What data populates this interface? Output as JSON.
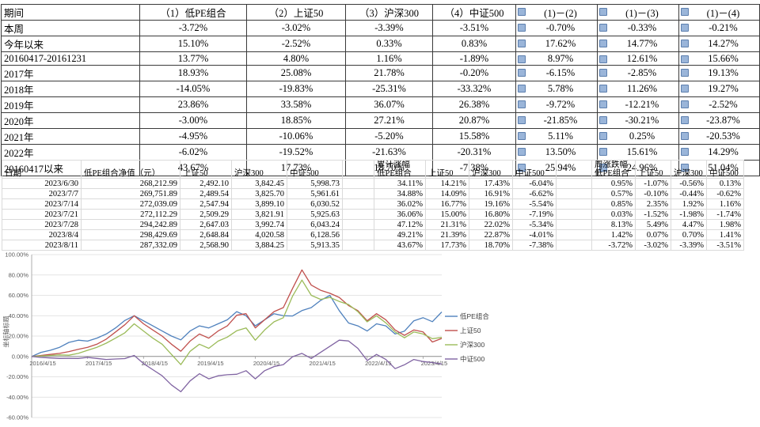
{
  "summary_table": {
    "headers": [
      "期间",
      "（1）低PE组合",
      "（2）上证50",
      "（3）沪深300",
      "（4）中证500",
      "(1)－(2)",
      "(1)－(3)",
      "(1)－(4)"
    ],
    "rows": [
      [
        "本周",
        "-3.72%",
        "-3.02%",
        "-3.39%",
        "-3.51%",
        "-0.70%",
        "-0.33%",
        "-0.21%"
      ],
      [
        "今年以来",
        "15.10%",
        "-2.52%",
        "0.33%",
        "0.83%",
        "17.62%",
        "14.77%",
        "14.27%"
      ],
      [
        "20160417-20161231",
        "13.77%",
        "4.80%",
        "1.16%",
        "-1.89%",
        "8.97%",
        "12.61%",
        "15.66%"
      ],
      [
        "2017年",
        "18.93%",
        "25.08%",
        "21.78%",
        "-0.20%",
        "-6.15%",
        "-2.85%",
        "19.13%"
      ],
      [
        "2018年",
        "-14.05%",
        "-19.83%",
        "-25.31%",
        "-33.32%",
        "5.78%",
        "11.26%",
        "19.27%"
      ],
      [
        "2019年",
        "23.86%",
        "33.58%",
        "36.07%",
        "26.38%",
        "-9.72%",
        "-12.21%",
        "-2.52%"
      ],
      [
        "2020年",
        "-3.00%",
        "18.85%",
        "27.21%",
        "20.87%",
        "-21.85%",
        "-30.21%",
        "-23.87%"
      ],
      [
        "2021年",
        "-4.95%",
        "-10.06%",
        "-5.20%",
        "15.58%",
        "5.11%",
        "0.25%",
        "-20.53%"
      ],
      [
        "2022年",
        "-6.02%",
        "-19.52%",
        "-21.63%",
        "-20.31%",
        "13.50%",
        "15.61%",
        "14.29%"
      ],
      [
        "20160417以来",
        "43.67%",
        "17.73%",
        "18.70%",
        "-7.38%",
        "25.94%",
        "24.96%",
        "51.04%"
      ]
    ]
  },
  "detail_table": {
    "headers": [
      {
        "l1": "日期"
      },
      {
        "l1": "低PE组合净值（元）"
      },
      {
        "l1": "上证50"
      },
      {
        "l1": "沪深300"
      },
      {
        "l1": "中证500"
      },
      {
        "l1": ""
      },
      {
        "l1": "累计涨幅",
        "l2": "低PE组合"
      },
      {
        "l1": "上证50"
      },
      {
        "l1": "沪深300"
      },
      {
        "l1": "中证500"
      },
      {
        "l1": ""
      },
      {
        "l1": "周涨跌幅",
        "l2": "低PE组合"
      },
      {
        "l1": "上证50"
      },
      {
        "l1": "沪深300"
      },
      {
        "l1": "中证500"
      }
    ],
    "rows": [
      [
        "2023/6/30",
        "268,212.99",
        "2,492.10",
        "3,842.45",
        "5,998.73",
        "",
        "34.11%",
        "14.21%",
        "17.43%",
        "-6.04%",
        "",
        "0.95%",
        "-1.07%",
        "-0.56%",
        "0.13%"
      ],
      [
        "2023/7/7",
        "269,751.89",
        "2,489.54",
        "3,825.70",
        "5,961.61",
        "",
        "34.88%",
        "14.09%",
        "16.91%",
        "-6.62%",
        "",
        "0.57%",
        "-0.10%",
        "-0.44%",
        "-0.62%"
      ],
      [
        "2023/7/14",
        "272,039.09",
        "2,547.94",
        "3,899.10",
        "6,030.52",
        "",
        "36.02%",
        "16.77%",
        "19.16%",
        "-5.54%",
        "",
        "0.85%",
        "2.35%",
        "1.92%",
        "1.16%"
      ],
      [
        "2023/7/21",
        "272,112.29",
        "2,509.29",
        "3,821.91",
        "5,925.63",
        "",
        "36.06%",
        "15.00%",
        "16.80%",
        "-7.19%",
        "",
        "0.03%",
        "-1.52%",
        "-1.98%",
        "-1.74%"
      ],
      [
        "2023/7/28",
        "294,242.89",
        "2,647.03",
        "3,992.74",
        "6,043.24",
        "",
        "47.12%",
        "21.31%",
        "22.02%",
        "-5.34%",
        "",
        "8.13%",
        "5.49%",
        "4.47%",
        "1.98%"
      ],
      [
        "2023/8/4",
        "298,429.69",
        "2,648.84",
        "4,020.58",
        "6,128.56",
        "",
        "49.21%",
        "21.39%",
        "22.87%",
        "-4.01%",
        "",
        "1.42%",
        "0.07%",
        "0.70%",
        "1.41%"
      ],
      [
        "2023/8/11",
        "287,332.09",
        "2,568.90",
        "3,884.25",
        "5,913.35",
        "",
        "43.67%",
        "17.73%",
        "18.70%",
        "-7.38%",
        "",
        "-3.72%",
        "-3.02%",
        "-3.39%",
        "-3.51%"
      ]
    ]
  },
  "chart_data": {
    "type": "line",
    "title": "",
    "ylabel": "坐标轴标题",
    "ylim": [
      -60,
      100
    ],
    "ytick_step": 20,
    "grid": true,
    "legend_position": "right",
    "x_span_months": 88,
    "x_labels": [
      "2016/4/15",
      "2017/4/15",
      "2018/4/15",
      "2019/4/15",
      "2020/4/15",
      "2021/4/15",
      "2022/4/15",
      "2023/4/15"
    ],
    "series": [
      {
        "key": "low-pe",
        "name": "低PE组合",
        "color": "#4f81bd",
        "values": [
          0,
          4,
          6,
          9,
          13.8,
          16,
          15,
          18,
          22,
          28,
          35.3,
          40,
          35,
          30,
          25,
          20,
          16.3,
          25,
          30,
          28,
          32,
          36,
          44,
          40,
          30,
          36,
          42,
          40,
          39.7,
          45,
          48,
          55,
          60,
          45,
          32.8,
          30,
          25,
          32,
          30,
          22,
          24.8,
          35,
          38,
          34.1,
          43.7
        ]
      },
      {
        "key": "sse50",
        "name": "上证50",
        "color": "#c0504d",
        "values": [
          0,
          1,
          2,
          3,
          4.8,
          7,
          9,
          12,
          17,
          24,
          31.1,
          40,
          32,
          26,
          20,
          12,
          5.1,
          15,
          22,
          18,
          25,
          30,
          40.4,
          42,
          28,
          36,
          44,
          48,
          66.8,
          85,
          70,
          65,
          62,
          58,
          50,
          45,
          35,
          42,
          36,
          26,
          20.7,
          26,
          24,
          14.2,
          17.7
        ]
      },
      {
        "key": "csi300",
        "name": "沪深300",
        "color": "#9bbb59",
        "values": [
          0,
          0.5,
          1,
          1.5,
          1.2,
          3,
          6,
          9,
          13,
          18,
          23.2,
          32,
          25,
          18,
          12,
          2,
          -8,
          5,
          12,
          8,
          15,
          19,
          25.2,
          28,
          16,
          26,
          34,
          38,
          59.3,
          75,
          60,
          56,
          58,
          54,
          51,
          44,
          34,
          40,
          33,
          24,
          18.3,
          24,
          22,
          17.4,
          18.7
        ]
      },
      {
        "key": "csi500",
        "name": "中证500",
        "color": "#8064a2",
        "values": [
          0,
          -1,
          -1.5,
          -2,
          -1.9,
          -2,
          -1,
          -2,
          -3,
          -2.5,
          -2.1,
          1,
          -7,
          -13,
          -19,
          -28,
          -34.7,
          -24,
          -17,
          -22,
          -19,
          -18,
          -17.5,
          -14,
          -22,
          -14,
          -10,
          -8,
          -0.3,
          3,
          -2,
          4,
          10,
          16,
          15.2,
          8,
          -4,
          2,
          -3,
          -12,
          -8.2,
          -3,
          -5,
          -6,
          -7.4
        ]
      }
    ]
  }
}
